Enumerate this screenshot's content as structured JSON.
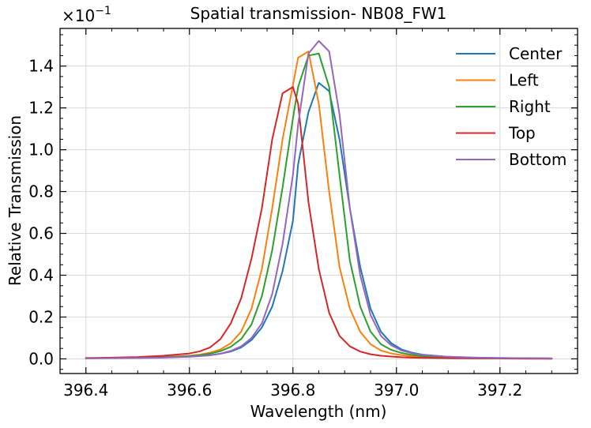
{
  "chart_data": {
    "type": "line",
    "title": "Spatial transmission- NB08_FW1",
    "xlabel": "Wavelength (nm)",
    "ylabel": "Relative Transmission",
    "scale_label": "×10",
    "scale_exponent": "−1",
    "xlim": [
      396.35,
      397.35
    ],
    "ylim": [
      -0.07,
      1.58
    ],
    "grid": true,
    "legend_position": "top-right",
    "xticks": [
      396.4,
      396.6,
      396.8,
      397.0,
      397.2
    ],
    "xtick_labels": [
      "396.4",
      "396.6",
      "396.8",
      "397.0",
      "397.2"
    ],
    "yticks": [
      0.0,
      0.2,
      0.4,
      0.6,
      0.8,
      1.0,
      1.2,
      1.4
    ],
    "ytick_labels": [
      "0.0",
      "0.2",
      "0.4",
      "0.6",
      "0.8",
      "1.0",
      "1.2",
      "1.4"
    ],
    "x": [
      396.4,
      396.45,
      396.5,
      396.55,
      396.6,
      396.62,
      396.64,
      396.66,
      396.68,
      396.7,
      396.72,
      396.74,
      396.76,
      396.78,
      396.8,
      396.81,
      396.83,
      396.85,
      396.87,
      396.89,
      396.91,
      396.93,
      396.95,
      396.97,
      396.99,
      397.01,
      397.03,
      397.05,
      397.1,
      397.15,
      397.2,
      397.25,
      397.3
    ],
    "series": [
      {
        "name": "Center",
        "color": "#1f77b4",
        "values": [
          0.003,
          0.004,
          0.005,
          0.007,
          0.011,
          0.014,
          0.018,
          0.025,
          0.035,
          0.055,
          0.09,
          0.15,
          0.25,
          0.42,
          0.66,
          0.93,
          1.18,
          1.32,
          1.28,
          1.05,
          0.72,
          0.44,
          0.24,
          0.13,
          0.075,
          0.045,
          0.03,
          0.02,
          0.01,
          0.006,
          0.004,
          0.003,
          0.002
        ]
      },
      {
        "name": "Left",
        "color": "#ff7f0e",
        "values": [
          0.003,
          0.004,
          0.006,
          0.009,
          0.015,
          0.02,
          0.03,
          0.045,
          0.075,
          0.13,
          0.24,
          0.43,
          0.72,
          1.05,
          1.31,
          1.44,
          1.47,
          1.22,
          0.8,
          0.44,
          0.24,
          0.13,
          0.07,
          0.04,
          0.026,
          0.018,
          0.012,
          0.009,
          0.005,
          0.003,
          0.002,
          0.002,
          0.001
        ]
      },
      {
        "name": "Right",
        "color": "#2ca02c",
        "values": [
          0.003,
          0.004,
          0.005,
          0.008,
          0.013,
          0.018,
          0.025,
          0.037,
          0.058,
          0.095,
          0.165,
          0.3,
          0.52,
          0.82,
          1.15,
          1.3,
          1.45,
          1.46,
          1.3,
          0.88,
          0.47,
          0.25,
          0.13,
          0.07,
          0.043,
          0.028,
          0.019,
          0.013,
          0.007,
          0.004,
          0.003,
          0.002,
          0.002
        ]
      },
      {
        "name": "Top",
        "color": "#d62728",
        "values": [
          0.004,
          0.006,
          0.009,
          0.015,
          0.026,
          0.036,
          0.055,
          0.095,
          0.17,
          0.29,
          0.48,
          0.72,
          1.05,
          1.27,
          1.3,
          1.22,
          0.75,
          0.43,
          0.22,
          0.11,
          0.06,
          0.035,
          0.022,
          0.015,
          0.011,
          0.008,
          0.006,
          0.005,
          0.003,
          0.002,
          0.002,
          0.001,
          0.001
        ]
      },
      {
        "name": "Bottom",
        "color": "#9467bd",
        "values": [
          0.002,
          0.003,
          0.004,
          0.006,
          0.01,
          0.013,
          0.017,
          0.025,
          0.038,
          0.06,
          0.1,
          0.17,
          0.31,
          0.55,
          0.88,
          1.12,
          1.46,
          1.52,
          1.47,
          1.17,
          0.72,
          0.4,
          0.21,
          0.11,
          0.065,
          0.04,
          0.027,
          0.019,
          0.01,
          0.006,
          0.004,
          0.003,
          0.002
        ]
      }
    ]
  }
}
